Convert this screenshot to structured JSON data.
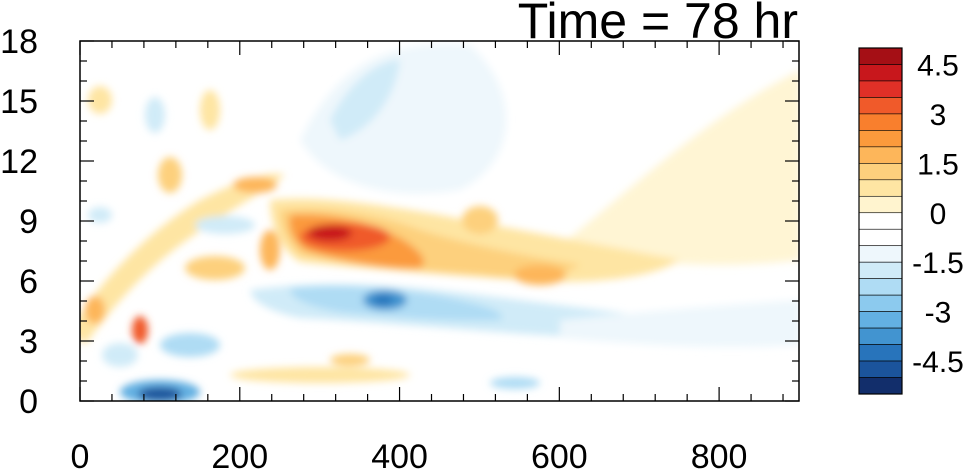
{
  "chart_data": {
    "type": "heatmap",
    "title": "Time = 78 hr",
    "xlabel": "",
    "ylabel": "",
    "xlim": [
      0,
      900
    ],
    "ylim": [
      0,
      18
    ],
    "x_ticks": [
      "0",
      "200",
      "400",
      "600",
      "800"
    ],
    "y_ticks": [
      "0",
      "3",
      "6",
      "9",
      "12",
      "15",
      "18"
    ],
    "colorbar": {
      "levels": [
        -5.0,
        -4.5,
        -4.0,
        -3.5,
        -3.0,
        -2.5,
        -2.0,
        -1.5,
        -1.0,
        -0.5,
        0,
        0.5,
        1.0,
        1.5,
        2.0,
        2.5,
        3.0,
        3.5,
        4.0,
        4.5,
        5.0
      ],
      "tick_labels": [
        "4.5",
        "3",
        "1.5",
        "0",
        "-1.5",
        "-3",
        "-4.5"
      ],
      "colors_top_to_bottom": [
        "#a50f15",
        "#c8171c",
        "#e03027",
        "#f05a2a",
        "#f97f2d",
        "#fb9a3c",
        "#fdb65a",
        "#fdd07d",
        "#fee5a3",
        "#fff4cf",
        "#ffffff",
        "#ffffff",
        "#eef7fc",
        "#d0ebf8",
        "#afdcf4",
        "#8ccaee",
        "#63b0e2",
        "#4294d0",
        "#2874bb",
        "#1b549c",
        "#122e6b"
      ]
    },
    "features": [
      {
        "name": "upper warm band",
        "x": [
          270,
          650
        ],
        "y_center_start": 8.4,
        "y_center_end": 6.2,
        "peak": 4.6
      },
      {
        "name": "lower cold band",
        "x": [
          250,
          700
        ],
        "y_center_start": 5.2,
        "y_center_end": 4.0,
        "peak": -4.0
      },
      {
        "name": "near-surface cold core",
        "x": [
          80,
          130
        ],
        "y": [
          0,
          1
        ],
        "peak": -5.0
      },
      {
        "name": "diagonal warm streak",
        "x": [
          60,
          110
        ],
        "y": [
          2,
          4
        ],
        "peak": 4.0
      }
    ]
  }
}
